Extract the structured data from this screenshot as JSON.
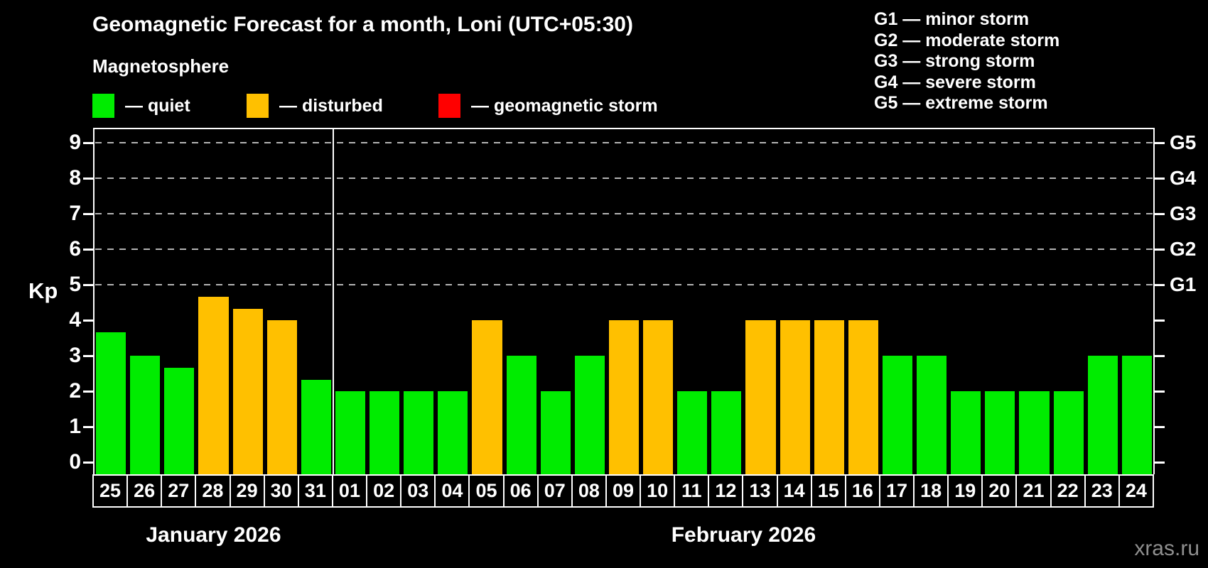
{
  "header": {
    "title": "Geomagnetic Forecast for a month, Loni (UTC+05:30)",
    "subtitle": "Magnetosphere"
  },
  "legend": {
    "items": [
      {
        "name": "quiet",
        "label": "— quiet",
        "color": "#00ec00"
      },
      {
        "name": "disturbed",
        "label": "— disturbed",
        "color": "#ffc000"
      },
      {
        "name": "geomagnetic-storm",
        "label": "— geomagnetic storm",
        "color": "#ff0000"
      }
    ]
  },
  "g_legend": {
    "items": [
      {
        "label": "G1 — minor storm"
      },
      {
        "label": "G2 — moderate storm"
      },
      {
        "label": "G3 — strong storm"
      },
      {
        "label": "G4 — severe storm"
      },
      {
        "label": "G5 — extreme storm"
      }
    ]
  },
  "chart_data": {
    "type": "bar",
    "title": "Geomagnetic Forecast for a month, Loni (UTC+05:30)",
    "ylabel": "Kp",
    "ylim": [
      0,
      9
    ],
    "y_ticks": [
      0,
      1,
      2,
      3,
      4,
      5,
      6,
      7,
      8,
      9
    ],
    "gridlines_at": [
      5,
      6,
      7,
      8,
      9
    ],
    "grid": "dashed horizontal at G-storm levels",
    "legend_position": "top",
    "categories": [
      "25",
      "26",
      "27",
      "28",
      "29",
      "30",
      "31",
      "01",
      "02",
      "03",
      "04",
      "05",
      "06",
      "07",
      "08",
      "09",
      "10",
      "11",
      "12",
      "13",
      "14",
      "15",
      "16",
      "17",
      "18",
      "19",
      "20",
      "21",
      "22",
      "23",
      "24"
    ],
    "values": [
      3.67,
      3,
      2.67,
      4.67,
      4.33,
      4,
      2.33,
      2,
      2,
      2,
      2,
      4,
      3,
      2,
      3,
      4,
      4,
      2,
      2,
      4,
      4,
      4,
      4,
      3,
      3,
      2,
      2,
      2,
      2,
      3,
      3
    ],
    "statuses": [
      "quiet",
      "quiet",
      "quiet",
      "disturbed",
      "disturbed",
      "disturbed",
      "quiet",
      "quiet",
      "quiet",
      "quiet",
      "quiet",
      "disturbed",
      "quiet",
      "quiet",
      "quiet",
      "disturbed",
      "disturbed",
      "quiet",
      "quiet",
      "disturbed",
      "disturbed",
      "disturbed",
      "disturbed",
      "quiet",
      "quiet",
      "quiet",
      "quiet",
      "quiet",
      "quiet",
      "quiet",
      "quiet"
    ],
    "colors": {
      "quiet": "#00ec00",
      "disturbed": "#ffc000",
      "geomagnetic-storm": "#ff0000"
    },
    "right_axis_labels": [
      {
        "kp": 5,
        "label": "G1"
      },
      {
        "kp": 6,
        "label": "G2"
      },
      {
        "kp": 7,
        "label": "G3"
      },
      {
        "kp": 8,
        "label": "G4"
      },
      {
        "kp": 9,
        "label": "G5"
      }
    ],
    "months": [
      {
        "label": "January 2026",
        "start_index": 0,
        "count": 7
      },
      {
        "label": "February 2026",
        "start_index": 7,
        "count": 24
      }
    ]
  },
  "watermark": "xras.ru"
}
